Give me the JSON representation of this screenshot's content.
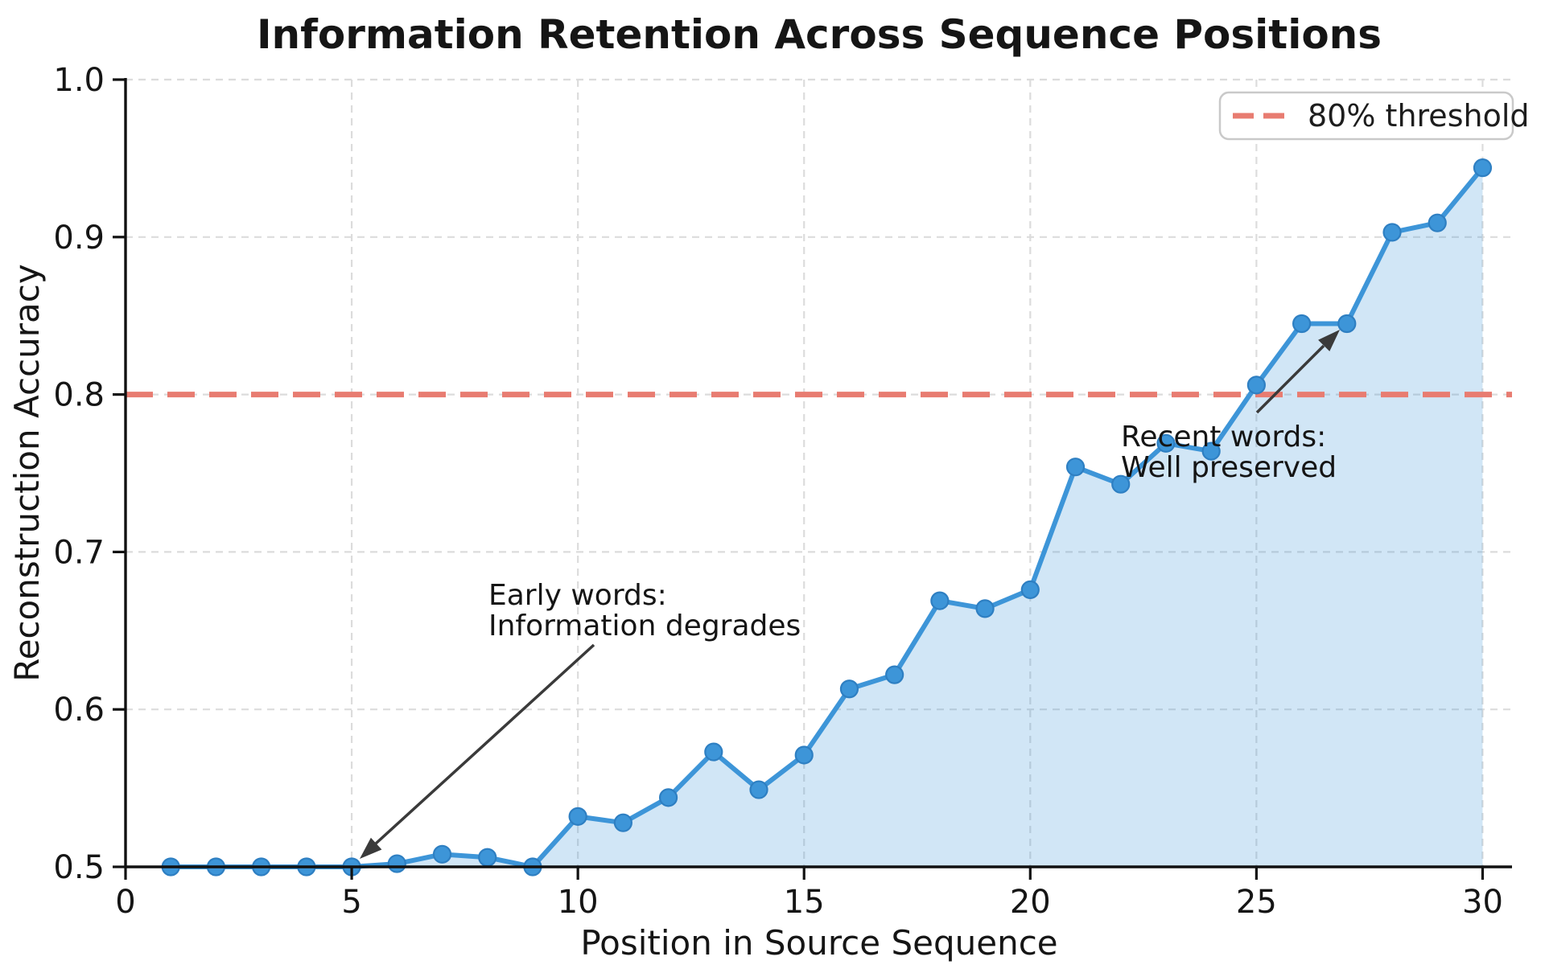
{
  "chart_data": {
    "type": "line",
    "title": "Information Retention Across Sequence Positions",
    "xlabel": "Position in Source Sequence",
    "ylabel": "Reconstruction Accuracy",
    "x": [
      1,
      2,
      3,
      4,
      5,
      6,
      7,
      8,
      9,
      10,
      11,
      12,
      13,
      14,
      15,
      16,
      17,
      18,
      19,
      20,
      21,
      22,
      23,
      24,
      25,
      26,
      27,
      28,
      29,
      30
    ],
    "values": [
      0.5,
      0.5,
      0.5,
      0.5,
      0.5,
      0.502,
      0.508,
      0.506,
      0.5,
      0.532,
      0.528,
      0.544,
      0.573,
      0.549,
      0.571,
      0.613,
      0.622,
      0.669,
      0.664,
      0.676,
      0.754,
      0.743,
      0.769,
      0.764,
      0.806,
      0.845,
      0.845,
      0.903,
      0.909,
      0.944
    ],
    "xlim": [
      0,
      30.65
    ],
    "ylim": [
      0.5,
      1.0
    ],
    "xticks": [
      0,
      5,
      10,
      15,
      20,
      25,
      30
    ],
    "xtick_labels": [
      "0",
      "5",
      "10",
      "15",
      "20",
      "25",
      "30"
    ],
    "yticks": [
      0.5,
      0.6,
      0.7,
      0.8,
      0.9,
      1.0
    ],
    "ytick_labels": [
      "0.5",
      "0.6",
      "0.7",
      "0.8",
      "0.9",
      "1.0"
    ],
    "grid": true,
    "area_fill_under_line": true,
    "legend_position": "upper right",
    "threshold": {
      "value": 0.8,
      "label": "80% threshold"
    },
    "annotations": [
      {
        "lines": [
          "Early words:",
          "Information degrades"
        ],
        "target_x": 5,
        "target_y": 0.502
      },
      {
        "lines": [
          "Recent words:",
          "Well preserved"
        ],
        "target_x": 27,
        "target_y": 0.845
      }
    ]
  },
  "colors": {
    "line": "#3D95D8",
    "marker": "#3D95D8",
    "marker_edge": "#2E7FC2",
    "area_fill": "#3D95D8",
    "threshold": "#E87C71",
    "grid": "#DCDCDC",
    "arrow": "#3A3A3A",
    "text": "#151515"
  }
}
